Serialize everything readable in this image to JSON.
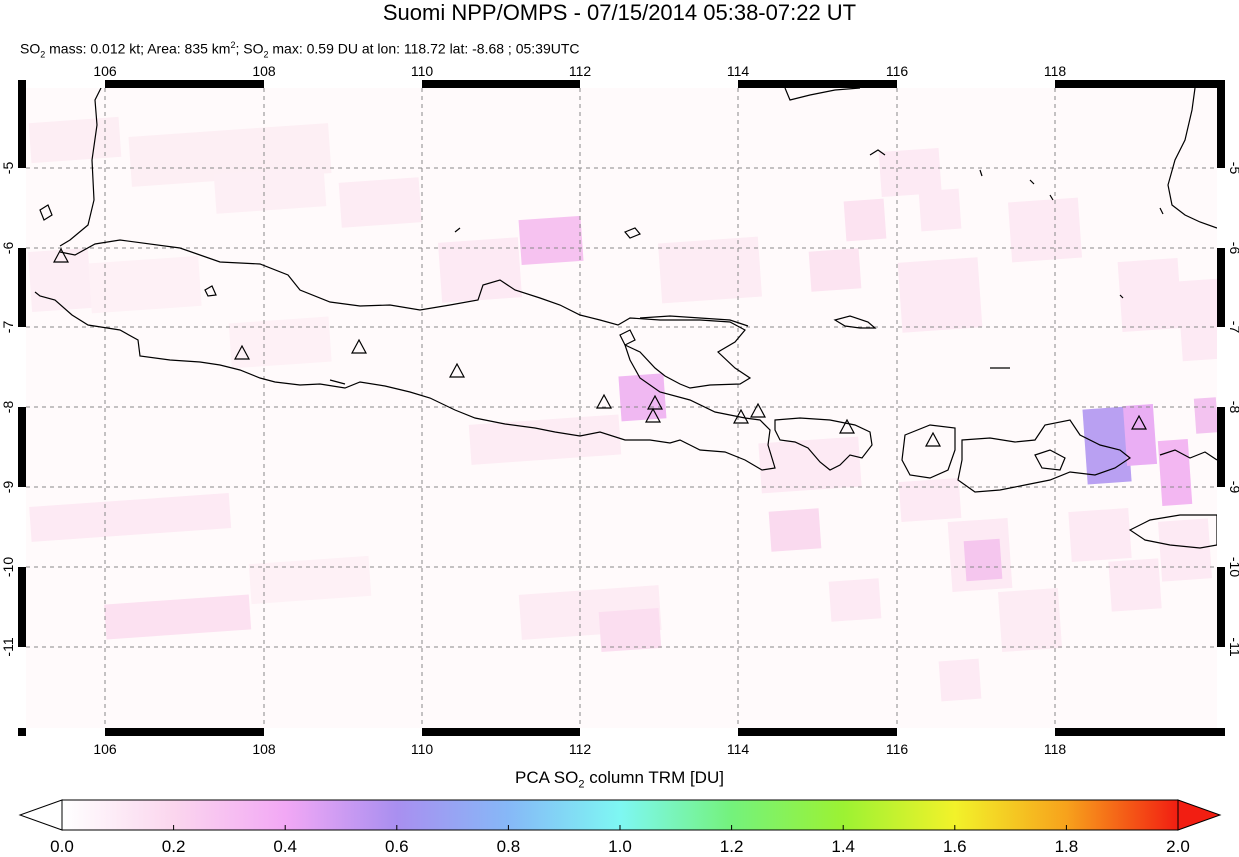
{
  "title": "Suomi NPP/OMPS - 07/15/2014 05:38-07:22 UT",
  "subtitle": {
    "p1": "SO",
    "p1_sub": "2",
    "p2": " mass: 0.012 kt; Area: 835 km",
    "p2_sup": "2",
    "p3": "; SO",
    "p3_sub": "2",
    "p4": " max: 0.59 DU at lon: 118.72 lat: -8.68 ; 05:39UTC"
  },
  "map": {
    "lon_ticks": [
      "106",
      "108",
      "110",
      "112",
      "114",
      "116",
      "118"
    ],
    "lat_ticks": [
      "-5",
      "-6",
      "-7",
      "-8",
      "-9",
      "-10",
      "-11"
    ],
    "lon_range": [
      105,
      120
    ],
    "lat_range": [
      -12,
      -4
    ]
  },
  "colorbar": {
    "title_a": "PCA SO",
    "title_sub": "2",
    "title_b": " column TRM [DU]",
    "ticks": [
      "0.0",
      "0.2",
      "0.4",
      "0.6",
      "0.8",
      "1.0",
      "1.2",
      "1.4",
      "1.6",
      "1.8",
      "2.0"
    ],
    "colors": [
      "#ffffff",
      "#fbd6ee",
      "#f2a8f5",
      "#a98ff0",
      "#86b8f7",
      "#7ef7f3",
      "#74f27c",
      "#9cf233",
      "#f2f22a",
      "#f7a21c",
      "#f21e12"
    ]
  }
}
